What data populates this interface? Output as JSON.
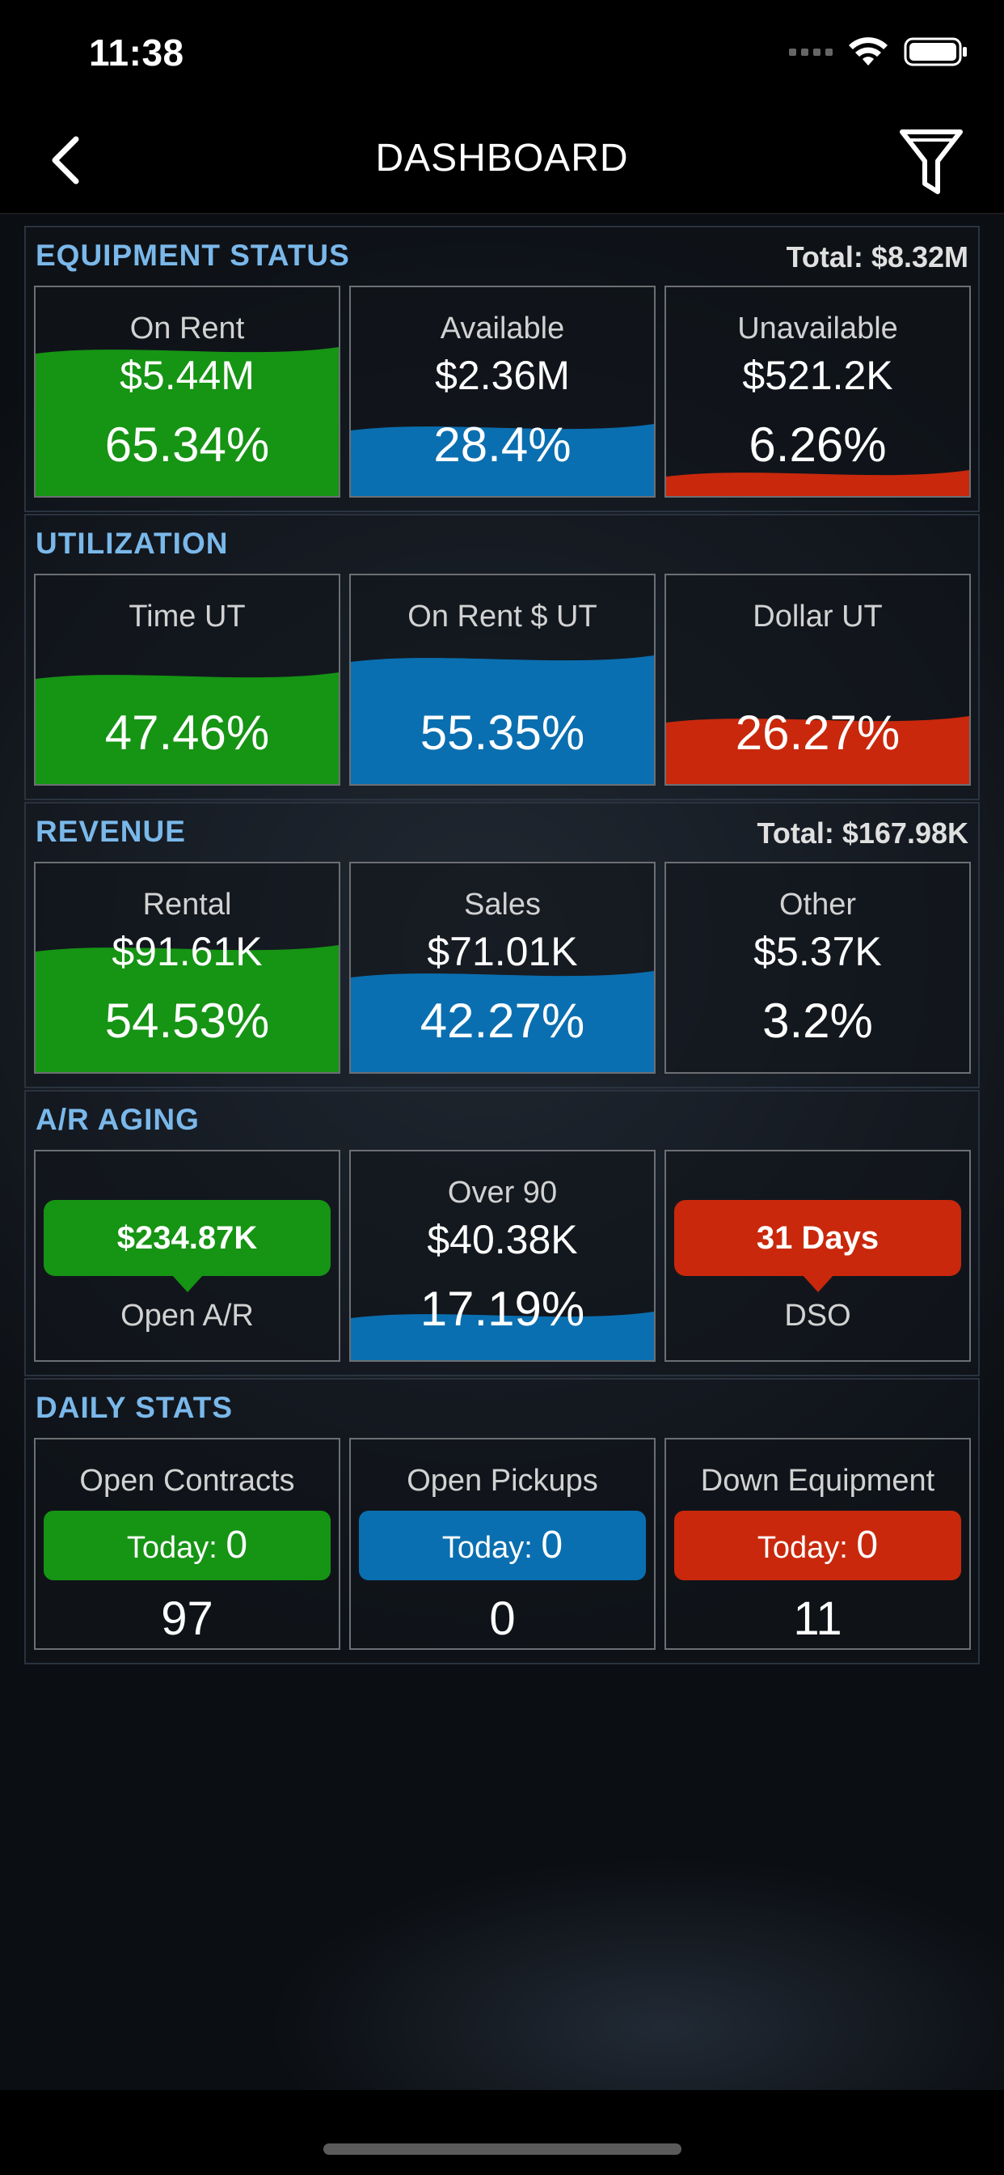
{
  "status_bar": {
    "time": "11:38"
  },
  "nav": {
    "title": "DASHBOARD"
  },
  "equipment": {
    "title": "EQUIPMENT STATUS",
    "total": "Total: $8.32M",
    "cards": [
      {
        "label": "On Rent",
        "amount": "$5.44M",
        "percent": "65.34%",
        "level": 0.65
      },
      {
        "label": "Available",
        "amount": "$2.36M",
        "percent": "28.4%",
        "level": 0.284
      },
      {
        "label": "Unavailable",
        "amount": "$521.2K",
        "percent": "6.26%",
        "level": 0.063
      }
    ]
  },
  "utilization": {
    "title": "UTILIZATION",
    "cards": [
      {
        "label": "Time UT",
        "percent": "47.46%",
        "level": 0.4746
      },
      {
        "label": "On Rent $ UT",
        "percent": "55.35%",
        "level": 0.5535
      },
      {
        "label": "Dollar UT",
        "percent": "26.27%",
        "level": 0.2627
      }
    ]
  },
  "revenue": {
    "title": "REVENUE",
    "total": "Total: $167.98K",
    "cards": [
      {
        "label": "Rental",
        "amount": "$91.61K",
        "percent": "54.53%",
        "level": 0.5453
      },
      {
        "label": "Sales",
        "amount": "$71.01K",
        "percent": "42.27%",
        "level": 0.4227
      },
      {
        "label": "Other",
        "amount": "$5.37K",
        "percent": "3.2%",
        "level": 0.032
      }
    ]
  },
  "ar_aging": {
    "title": "A/R AGING",
    "open_ar": {
      "value": "$234.87K",
      "label": "Open A/R"
    },
    "over90": {
      "label": "Over 90",
      "amount": "$40.38K",
      "percent": "17.19%",
      "level": 0.1719
    },
    "dso": {
      "value": "31 Days",
      "label": "DSO"
    }
  },
  "daily_stats": {
    "title": "DAILY STATS",
    "today_label": "Today:",
    "cards": [
      {
        "label": "Open Contracts",
        "today": "0",
        "count": "97"
      },
      {
        "label": "Open Pickups",
        "today": "0",
        "count": "0"
      },
      {
        "label": "Down Equipment",
        "today": "0",
        "count": "11"
      }
    ]
  },
  "colors": {
    "green": "#169414",
    "blue": "#0a6fb0",
    "red": "#c9280c",
    "section_title": "#7ab8ea"
  }
}
